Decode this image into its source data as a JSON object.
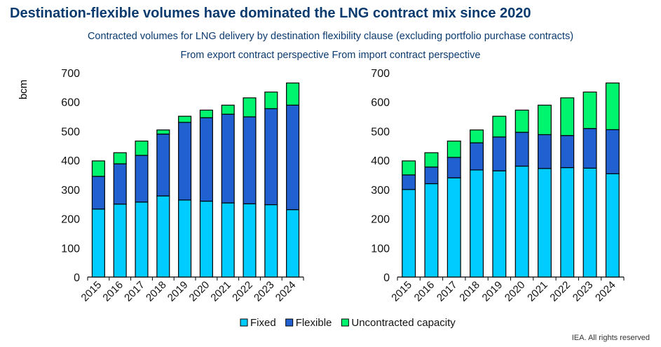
{
  "title": "Destination-flexible volumes have dominated the LNG contract mix since 2020",
  "subtitle": "Contracted volumes for LNG delivery by destination flexibility clause (excluding portfolio purchase contracts)",
  "subtitle2": "From export contract perspective From import contract perspective",
  "credit": "IEA. All rights reserved",
  "colors": {
    "Fixed": "#00ccff",
    "Flexible": "#2160d0",
    "Uncontracted capacity": "#00f56e"
  },
  "chart_data": [
    {
      "type": "bar",
      "stacked": true,
      "title": "From export contract perspective",
      "ylabel": "bcm",
      "ylim": [
        0,
        700
      ],
      "yticks": [
        0,
        100,
        200,
        300,
        400,
        500,
        600,
        700
      ],
      "categories": [
        "2015",
        "2016",
        "2017",
        "2018",
        "2019",
        "2020",
        "2021",
        "2022",
        "2023",
        "2024"
      ],
      "series": [
        {
          "name": "Fixed",
          "values": [
            233,
            250,
            257,
            278,
            264,
            260,
            254,
            251,
            248,
            231
          ]
        },
        {
          "name": "Flexible",
          "values": [
            112,
            138,
            160,
            212,
            266,
            286,
            304,
            298,
            329,
            358
          ]
        },
        {
          "name": "Uncontracted capacity",
          "values": [
            53,
            38,
            49,
            14,
            21,
            26,
            31,
            65,
            57,
            76
          ]
        }
      ]
    },
    {
      "type": "bar",
      "stacked": true,
      "title": "From import contract perspective",
      "ylabel": "",
      "ylim": [
        0,
        700
      ],
      "yticks": [
        0,
        100,
        200,
        300,
        400,
        500,
        600,
        700
      ],
      "categories": [
        "2015",
        "2016",
        "2017",
        "2018",
        "2019",
        "2020",
        "2021",
        "2022",
        "2023",
        "2024"
      ],
      "series": [
        {
          "name": "Fixed",
          "values": [
            300,
            320,
            340,
            367,
            364,
            380,
            372,
            375,
            373,
            354
          ]
        },
        {
          "name": "Flexible",
          "values": [
            50,
            57,
            70,
            93,
            116,
            116,
            116,
            110,
            136,
            151
          ]
        },
        {
          "name": "Uncontracted capacity",
          "values": [
            48,
            49,
            56,
            44,
            71,
            76,
            101,
            129,
            125,
            160
          ]
        }
      ]
    }
  ],
  "legend": [
    "Fixed",
    "Flexible",
    "Uncontracted capacity"
  ]
}
